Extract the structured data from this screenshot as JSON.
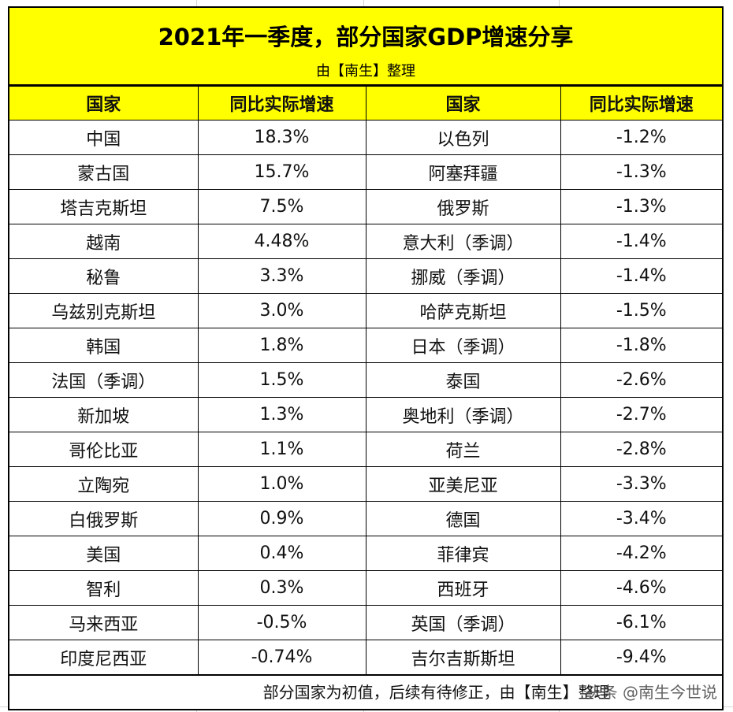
{
  "title": "2021年一季度，部分国家GDP增速分享",
  "subtitle": "由【南生】整理",
  "headers": [
    "国家",
    "同比实际增速",
    "国家",
    "同比实际增速"
  ],
  "rows": [
    [
      "中国",
      "18.3%",
      "以色列",
      "-1.2%"
    ],
    [
      "蒙古国",
      "15.7%",
      "阿塞拜疆",
      "-1.3%"
    ],
    [
      "塔吉克斯坦",
      "7.5%",
      "俄罗斯",
      "-1.3%"
    ],
    [
      "越南",
      "4.48%",
      "意大利（季调）",
      "-1.4%"
    ],
    [
      "秘鲁",
      "3.3%",
      "挪威（季调）",
      "-1.4%"
    ],
    [
      "乌兹别克斯坦",
      "3.0%",
      "哈萨克斯坦",
      "-1.5%"
    ],
    [
      "韩国",
      "1.8%",
      "日本（季调）",
      "-1.8%"
    ],
    [
      "法国（季调）",
      "1.5%",
      "泰国",
      "-2.6%"
    ],
    [
      "新加坡",
      "1.3%",
      "奥地利（季调）",
      "-2.7%"
    ],
    [
      "哥伦比亚",
      "1.1%",
      "荷兰",
      "-2.8%"
    ],
    [
      "立陶宛",
      "1.0%",
      "亚美尼亚",
      "-3.3%"
    ],
    [
      "白俄罗斯",
      "0.9%",
      "德国",
      "-3.4%"
    ],
    [
      "美国",
      "0.4%",
      "菲律宾",
      "-4.2%"
    ],
    [
      "智利",
      "0.3%",
      "西班牙",
      "-4.6%"
    ],
    [
      "马来西亚",
      "-0.5%",
      "英国（季调）",
      "-6.1%"
    ],
    [
      "印度尼西亚",
      "-0.74%",
      "吉尔吉斯斯坦",
      "-9.4%"
    ]
  ],
  "footer_note": "部分国家为初值，后续有待修正，由【南生】整理",
  "watermark": "头条 @南生今世说",
  "colors": {
    "header_fill": "#ffff00",
    "border": "#000000",
    "gridline": "#d4d4d4"
  }
}
